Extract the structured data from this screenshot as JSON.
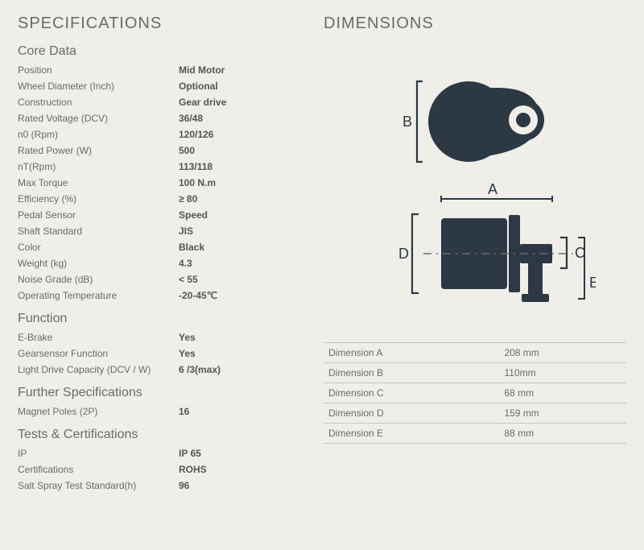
{
  "headings": {
    "specifications": "SPECIFICATIONS",
    "dimensions": "DIMENSIONS",
    "core_data": "Core Data",
    "function": "Function",
    "further": "Further Specifications",
    "tests": "Tests & Certifications"
  },
  "core_data": [
    {
      "label": "Position",
      "value": "Mid Motor"
    },
    {
      "label": "Wheel Diameter (Inch)",
      "value": "Optional"
    },
    {
      "label": "Construction",
      "value": "Gear drive"
    },
    {
      "label": "Rated Voltage (DCV)",
      "value": "36/48"
    },
    {
      "label": "n0 (Rpm)",
      "value": "120/126"
    },
    {
      "label": "Rated Power (W)",
      "value": "500"
    },
    {
      "label": "nT(Rpm)",
      "value": "113/118"
    },
    {
      "label": "Max Torque",
      "value": "100 N.m"
    },
    {
      "label": "Efficiency (%)",
      "value": "≥ 80"
    },
    {
      "label": "Pedal Sensor",
      "value": "Speed"
    },
    {
      "label": "Shaft Standard",
      "value": "JIS"
    },
    {
      "label": "Color",
      "value": "Black"
    },
    {
      "label": "Weight (kg)",
      "value": "4.3"
    },
    {
      "label": "Noise Grade (dB)",
      "value": "< 55"
    },
    {
      "label": "Operating Temperature",
      "value": "-20-45℃"
    }
  ],
  "function": [
    {
      "label": "E-Brake",
      "value": "Yes"
    },
    {
      "label": "Gearsensor Function",
      "value": "Yes"
    },
    {
      "label": "Light Drive Capacity (DCV / W)",
      "value": "6 /3(max)"
    }
  ],
  "further": [
    {
      "label": "Magnet Poles (2P)",
      "value": "16"
    }
  ],
  "tests": [
    {
      "label": "IP",
      "value": "IP 65"
    },
    {
      "label": "Certifications",
      "value": "ROHS"
    },
    {
      "label": "Salt Spray Test Standard(h)",
      "value": "96"
    }
  ],
  "dim_labels": {
    "A": "A",
    "B": "B",
    "C": "C",
    "D": "D",
    "E": "E"
  },
  "dimensions_table": [
    {
      "label": "Dimension A",
      "value": "208 mm"
    },
    {
      "label": "Dimension B",
      "value": "110mm"
    },
    {
      "label": "Dimension C",
      "value": "68 mm"
    },
    {
      "label": "Dimension D",
      "value": "159 mm"
    },
    {
      "label": "Dimension E",
      "value": "88 mm"
    }
  ],
  "diagram_style": {
    "shape_fill": "#2d3845",
    "shape_hole": "#efeee9",
    "line_stroke": "#2d3845",
    "label_color": "#2d3845",
    "dash_color": "#6a6a68",
    "label_fontsize": 18
  }
}
